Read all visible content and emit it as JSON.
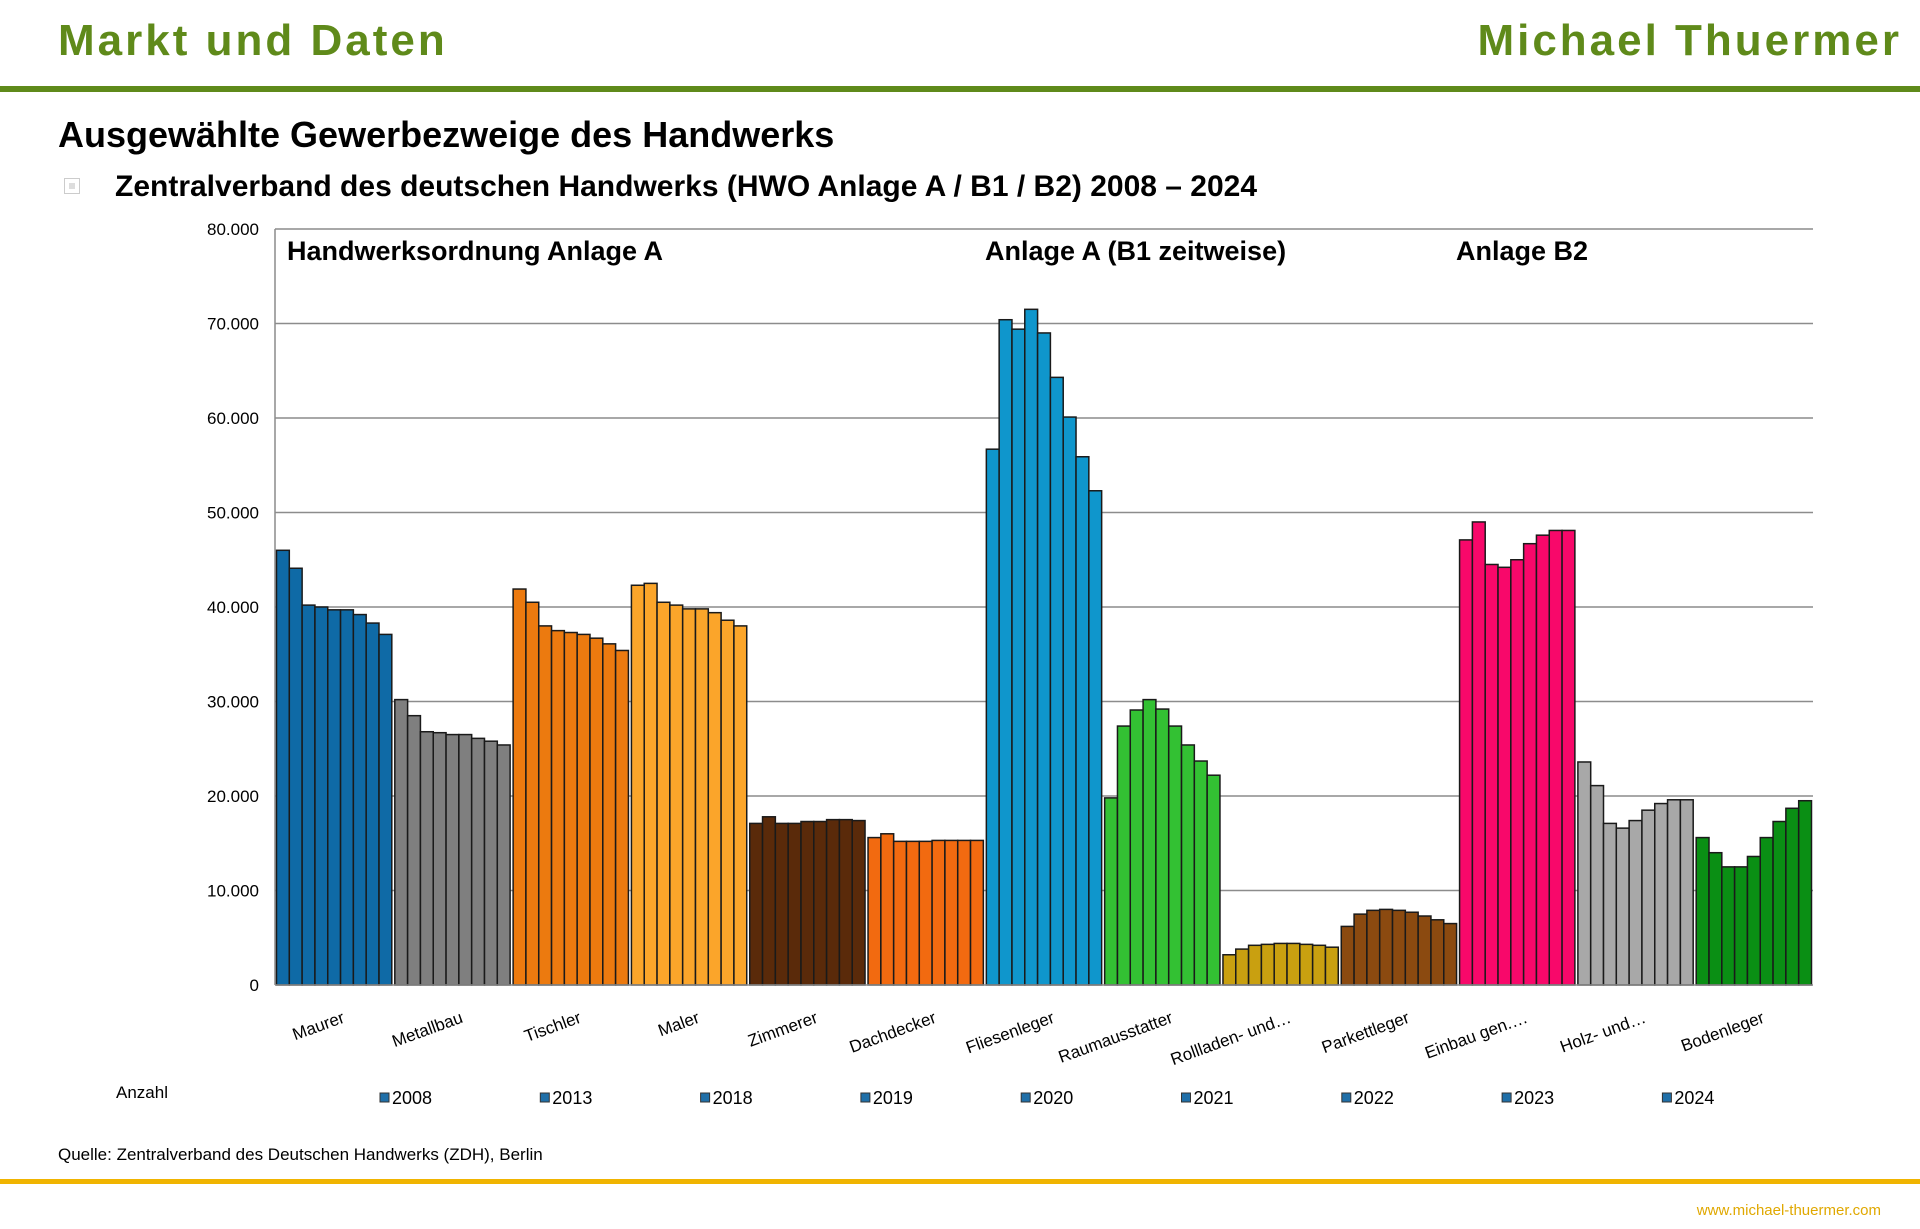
{
  "header": {
    "left": "Markt und Daten",
    "right": "Michael Thuermer"
  },
  "title": "Ausgewählte Gewerbezweige des Handwerks",
  "subtitle": "Zentralverband des deutschen Handwerks (HWO Anlage A / B1 / B2) 2008 – 2024",
  "source": "Quelle: Zentralverband des Deutschen Handwerks (ZDH), Berlin",
  "url": "www.michael-thuermer.com",
  "chart_data": {
    "type": "bar",
    "ylabel": "Anzahl",
    "ylim": [
      0,
      80000
    ],
    "yticks": [
      "0",
      "10.000",
      "20.000",
      "30.000",
      "40.000",
      "50.000",
      "60.000",
      "70.000",
      "80.000"
    ],
    "grid": true,
    "legend_placement": "bottom",
    "legend_color": "#1f6fa8",
    "annotations": [
      "Handwerksordnung Anlage A",
      "Anlage A (B1 zeitweise)",
      "Anlage B2"
    ],
    "years": [
      "2008",
      "2013",
      "2018",
      "2019",
      "2020",
      "2021",
      "2022",
      "2023",
      "2024"
    ],
    "categories": [
      {
        "name": "Maurer",
        "color": "#0f6aa6",
        "values": [
          46000,
          44100,
          40200,
          40000,
          39700,
          39700,
          39200,
          38300,
          37100
        ]
      },
      {
        "name": "Metallbau",
        "color": "#7f7f7f",
        "values": [
          30200,
          28500,
          26800,
          26700,
          26500,
          26500,
          26100,
          25800,
          25400
        ]
      },
      {
        "name": "Tischler",
        "color": "#ec7a0f",
        "values": [
          41900,
          40500,
          38000,
          37500,
          37300,
          37100,
          36700,
          36100,
          35400
        ]
      },
      {
        "name": "Maler",
        "color": "#fba52a",
        "values": [
          42300,
          42500,
          40500,
          40200,
          39800,
          39800,
          39400,
          38600,
          38000
        ]
      },
      {
        "name": "Zimmerer",
        "color": "#5a2a0a",
        "values": [
          17100,
          17800,
          17100,
          17100,
          17300,
          17300,
          17500,
          17500,
          17400
        ]
      },
      {
        "name": "Dachdecker",
        "color": "#f26a10",
        "values": [
          15600,
          16000,
          15200,
          15200,
          15200,
          15300,
          15300,
          15300,
          15300
        ]
      },
      {
        "name": "Fliesenleger",
        "color": "#0f96cc",
        "values": [
          56700,
          70400,
          69400,
          71500,
          69000,
          64300,
          60100,
          55900,
          52300
        ]
      },
      {
        "name": "Raumausstatter",
        "color": "#33c133",
        "values": [
          19800,
          27400,
          29100,
          30200,
          29200,
          27400,
          25400,
          23700,
          22200
        ]
      },
      {
        "name": "Rollladen- und…",
        "color": "#c9a010",
        "values": [
          3200,
          3800,
          4200,
          4300,
          4400,
          4400,
          4300,
          4200,
          4000
        ]
      },
      {
        "name": "Parkettleger",
        "color": "#8b4a10",
        "values": [
          6200,
          7500,
          7900,
          8000,
          7900,
          7700,
          7300,
          6900,
          6500
        ]
      },
      {
        "name": "Einbau gen.…",
        "color": "#f8086a",
        "values": [
          47100,
          49000,
          44500,
          44200,
          45000,
          46700,
          47600,
          48100,
          48100
        ]
      },
      {
        "name": "Holz- und…",
        "color": "#a8a8a8",
        "values": [
          23600,
          21100,
          17100,
          16600,
          17400,
          18500,
          19200,
          19600,
          19600
        ]
      },
      {
        "name": "Bodenleger",
        "color": "#0a8f14",
        "values": [
          15600,
          14000,
          12500,
          12500,
          13600,
          15600,
          17300,
          18700,
          19500
        ]
      }
    ]
  }
}
